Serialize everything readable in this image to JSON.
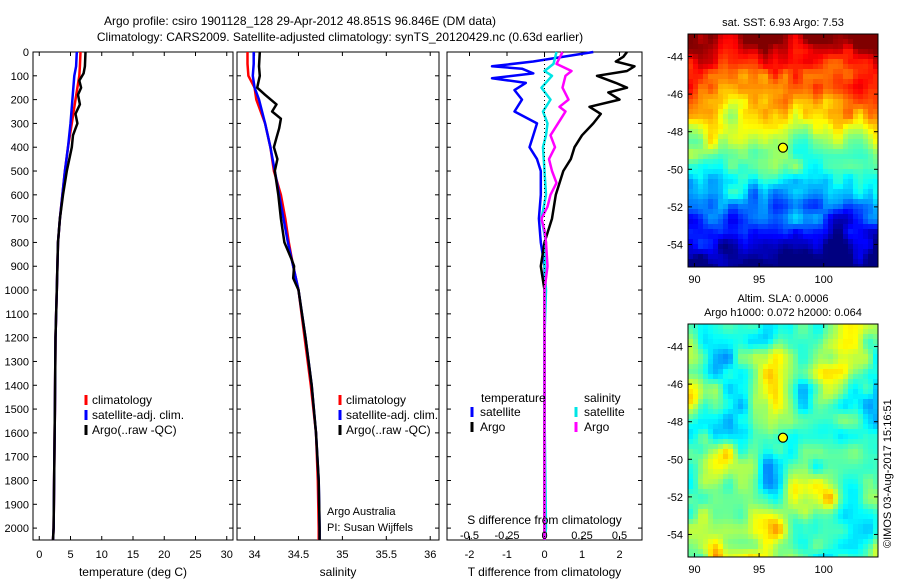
{
  "title": {
    "line1": "Argo profile: csiro 1901128_128 29-Apr-2012 48.851S 96.846E (DM data)",
    "line2": "Climatology: CARS2009. Satellite-adjusted climatology: synTS_20120429.nc (0.63d earlier)"
  },
  "watermark": "©IMOS 03-Aug-2017 15:16:51",
  "credits": {
    "line1": "Argo Australia",
    "line2": "PI: Susan Wijffels"
  },
  "depth_ticks": [
    "0",
    "100",
    "200",
    "300",
    "400",
    "500",
    "600",
    "700",
    "800",
    "900",
    "1000",
    "1100",
    "1200",
    "1300",
    "1400",
    "1500",
    "1600",
    "1700",
    "1800",
    "1900",
    "2000"
  ],
  "colors": {
    "climatology": "#ff0000",
    "satellite": "#0000ff",
    "argo": "#000000",
    "sal_satellite": "#00e5e5",
    "sal_argo": "#ff00ff"
  },
  "chart_data": [
    {
      "type": "line",
      "xlabel": "temperature (deg C)",
      "ylabel": "",
      "xlim": [
        -1,
        31
      ],
      "ylim": [
        2050,
        0
      ],
      "xticks": [
        "0",
        "5",
        "10",
        "15",
        "20",
        "25",
        "30"
      ],
      "legend": [
        "climatology",
        "satellite-adj. clim.",
        "Argo(..raw -QC)"
      ],
      "series": [
        {
          "name": "climatology",
          "depth": [
            0,
            60,
            100,
            200,
            300,
            400,
            500,
            600,
            700,
            800,
            1000,
            1200,
            1500,
            2000,
            2050
          ],
          "values": [
            6.6,
            6.5,
            6.4,
            5.8,
            5.2,
            4.6,
            4.1,
            3.7,
            3.3,
            3.0,
            2.8,
            2.6,
            2.5,
            2.3,
            2.2
          ]
        },
        {
          "name": "satellite-adj. clim.",
          "depth": [
            0,
            60,
            100,
            200,
            300,
            400,
            500,
            600,
            700,
            800,
            1000,
            1200,
            1500,
            2000,
            2050
          ],
          "values": [
            6.0,
            5.9,
            5.6,
            5.3,
            5.0,
            4.6,
            4.1,
            3.7,
            3.3,
            3.0,
            2.8,
            2.6,
            2.5,
            2.3,
            2.2
          ]
        },
        {
          "name": "Argo(..raw -QC)",
          "depth": [
            0,
            60,
            90,
            120,
            150,
            180,
            220,
            260,
            300,
            350,
            400,
            500,
            600,
            700,
            800,
            1000,
            1200,
            1500,
            2000,
            2050
          ],
          "values": [
            7.4,
            7.3,
            7.1,
            6.4,
            6.7,
            6.2,
            6.5,
            5.8,
            6.1,
            5.4,
            5.2,
            4.4,
            3.8,
            3.3,
            3.0,
            2.8,
            2.6,
            2.5,
            2.3,
            2.2
          ]
        }
      ]
    },
    {
      "type": "line",
      "xlabel": "salinity",
      "ylabel": "",
      "xlim": [
        33.8,
        36.1
      ],
      "ylim": [
        2050,
        0
      ],
      "xticks": [
        "34",
        "34.5",
        "35",
        "35.5",
        "36"
      ],
      "legend": [
        "climatology",
        "satellite-adj. clim.",
        "Argo(..raw -QC)"
      ],
      "series": [
        {
          "name": "climatology",
          "depth": [
            0,
            50,
            100,
            150,
            200,
            300,
            400,
            500,
            600,
            700,
            800,
            900,
            1000,
            1200,
            1400,
            1600,
            1800,
            2000,
            2050
          ],
          "values": [
            33.92,
            33.92,
            33.93,
            34.0,
            34.02,
            34.12,
            34.18,
            34.22,
            34.3,
            34.35,
            34.39,
            34.44,
            34.5,
            34.57,
            34.64,
            34.7,
            34.72,
            34.73,
            34.73
          ]
        },
        {
          "name": "satellite-adj. clim.",
          "depth": [
            0,
            50,
            100,
            150,
            200,
            300,
            400,
            500,
            600,
            700,
            800,
            900,
            1000,
            1200,
            1400,
            1600,
            1800,
            2000,
            2050
          ],
          "values": [
            33.99,
            33.99,
            33.98,
            34.0,
            34.05,
            34.12,
            34.18,
            34.23,
            34.28,
            34.33,
            34.38,
            34.44,
            34.5,
            34.58,
            34.65,
            34.7,
            34.73,
            34.74,
            34.74
          ]
        },
        {
          "name": "Argo(..raw -QC)",
          "depth": [
            0,
            60,
            100,
            150,
            180,
            220,
            250,
            280,
            320,
            360,
            400,
            450,
            500,
            600,
            700,
            800,
            870,
            900,
            950,
            1000,
            1200,
            1400,
            1600,
            1800,
            2000,
            2050
          ],
          "values": [
            34.06,
            34.05,
            34.06,
            34.03,
            34.12,
            34.25,
            34.2,
            34.3,
            34.28,
            34.25,
            34.22,
            34.26,
            34.23,
            34.27,
            34.3,
            34.34,
            34.42,
            34.45,
            34.44,
            34.5,
            34.58,
            34.65,
            34.7,
            34.73,
            34.74,
            34.74
          ]
        }
      ]
    },
    {
      "type": "line",
      "xlabel": "T difference from climatology",
      "ylabel": "",
      "xlim": [
        -2.6,
        2.6
      ],
      "ylim": [
        2050,
        0
      ],
      "xticks": [
        "-2",
        "-1",
        "0",
        "1",
        "2"
      ],
      "top_axis_label": "S difference from climatology",
      "top_ticks": [
        "-0.5",
        "-0.25",
        "0",
        "0.25",
        "0.5"
      ],
      "legend_groups": {
        "temperature": [
          "satellite",
          "Argo"
        ],
        "salinity": [
          "satellite",
          "Argo"
        ]
      },
      "series": [
        {
          "name": "temperature satellite",
          "depth": [
            0,
            40,
            60,
            70,
            90,
            110,
            130,
            160,
            200,
            250,
            300,
            350,
            400,
            450,
            500,
            600,
            700,
            800,
            900,
            1000,
            1200,
            1500,
            2000,
            2050
          ],
          "values": [
            1.3,
            -0.3,
            -1.4,
            -0.6,
            -0.3,
            -1.4,
            -0.5,
            -0.8,
            -0.6,
            -0.8,
            -0.2,
            -0.3,
            -0.4,
            -0.2,
            -0.1,
            -0.1,
            -0.15,
            -0.1,
            0.0,
            0.0,
            0.0,
            0.0,
            0.0,
            0.0
          ]
        },
        {
          "name": "temperature Argo",
          "depth": [
            0,
            20,
            40,
            60,
            80,
            100,
            130,
            150,
            170,
            200,
            230,
            260,
            300,
            350,
            400,
            450,
            500,
            600,
            700,
            800,
            900,
            1000,
            1200,
            1500,
            2000,
            2050
          ],
          "values": [
            2.2,
            2.1,
            1.9,
            2.4,
            2.2,
            1.4,
            1.9,
            2.2,
            1.7,
            2.0,
            1.2,
            1.5,
            1.3,
            1.0,
            0.8,
            0.7,
            0.5,
            0.3,
            0.2,
            0.0,
            -0.1,
            0.0,
            0.0,
            0.0,
            0.0,
            0.0
          ]
        },
        {
          "name": "salinity satellite",
          "depth": [
            0,
            50,
            80,
            100,
            150,
            200,
            250,
            300,
            350,
            400,
            500,
            600,
            700,
            800,
            900,
            1000,
            1200,
            1500,
            2000,
            2050
          ],
          "values": [
            0.08,
            0.06,
            0.0,
            0.05,
            -0.02,
            0.04,
            -0.01,
            0.02,
            0.01,
            -0.01,
            0.0,
            0.01,
            -0.02,
            0.01,
            0.0,
            0.01,
            0.0,
            0.0,
            0.01,
            0.0
          ]
        },
        {
          "name": "salinity Argo",
          "depth": [
            0,
            50,
            80,
            100,
            150,
            200,
            230,
            250,
            280,
            300,
            350,
            400,
            450,
            500,
            550,
            600,
            650,
            700,
            750,
            800,
            900,
            1000,
            1200,
            1500,
            2000,
            2050
          ],
          "values": [
            0.12,
            0.08,
            0.18,
            0.14,
            0.12,
            0.16,
            0.1,
            0.14,
            0.11,
            0.09,
            0.04,
            0.07,
            0.03,
            0.05,
            0.08,
            0.04,
            0.02,
            -0.02,
            0.0,
            0.01,
            0.02,
            0.0,
            0.0,
            0.0,
            0.0,
            0.0
          ]
        }
      ]
    },
    {
      "type": "heatmap",
      "title": "sat. SST: 6.93 Argo: 7.53",
      "xlim": [
        89.5,
        104.2
      ],
      "ylim": [
        -55.2,
        -42.8
      ],
      "xticks": [
        "90",
        "95",
        "100"
      ],
      "yticks": [
        "-44",
        "-46",
        "-48",
        "-50",
        "-52",
        "-54"
      ],
      "marker": {
        "lon": 96.846,
        "lat": -48.851
      }
    },
    {
      "type": "heatmap",
      "title_lines": [
        "Altim. SLA: 0.0006",
        "Argo h1000: 0.072 h2000: 0.064"
      ],
      "xlim": [
        89.5,
        104.2
      ],
      "ylim": [
        -55.2,
        -42.8
      ],
      "xticks": [
        "90",
        "95",
        "100"
      ],
      "yticks": [
        "-44",
        "-46",
        "-48",
        "-50",
        "-52",
        "-54"
      ],
      "marker": {
        "lon": 96.846,
        "lat": -48.851
      }
    }
  ]
}
